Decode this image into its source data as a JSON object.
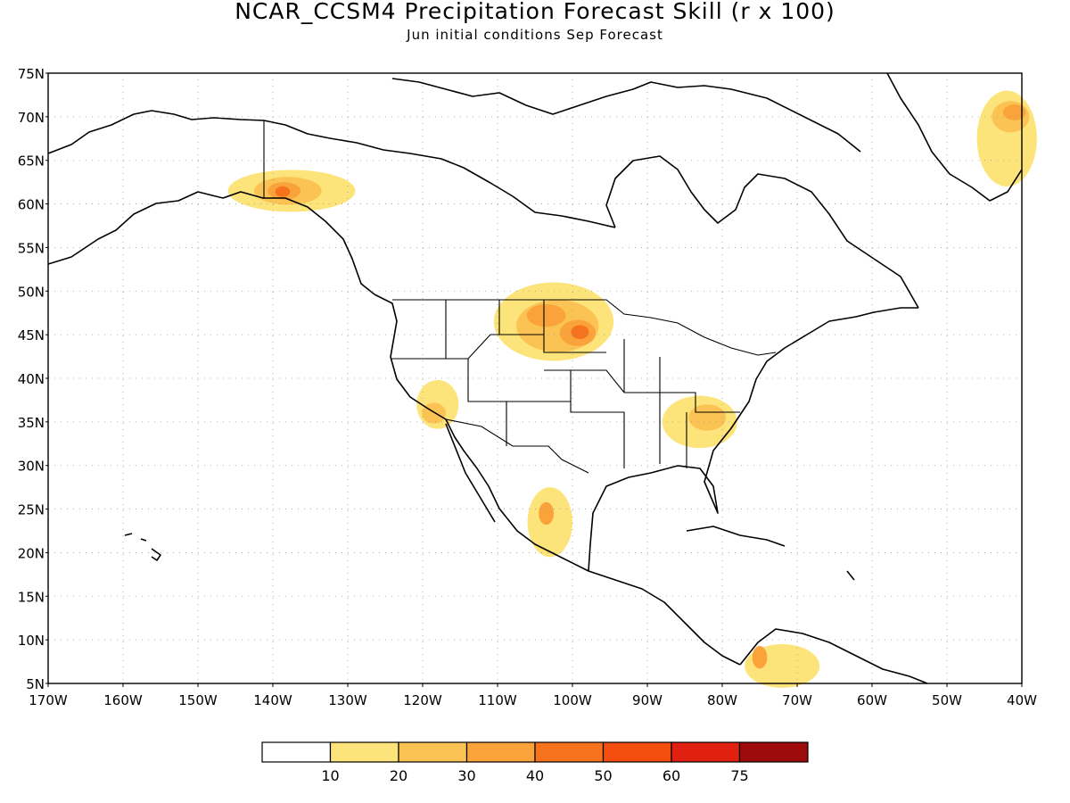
{
  "title": "NCAR_CCSM4 Precipitation Forecast Skill (r x 100)",
  "subtitle": "Jun initial conditions  Sep Forecast",
  "map": {
    "lon_min": -170,
    "lon_max": -40,
    "lat_min": 5,
    "lat_max": 75,
    "lat_ticks": [
      {
        "value": 75,
        "label": "75N"
      },
      {
        "value": 70,
        "label": "70N"
      },
      {
        "value": 65,
        "label": "65N"
      },
      {
        "value": 60,
        "label": "60N"
      },
      {
        "value": 55,
        "label": "55N"
      },
      {
        "value": 50,
        "label": "50N"
      },
      {
        "value": 45,
        "label": "45N"
      },
      {
        "value": 40,
        "label": "40N"
      },
      {
        "value": 35,
        "label": "35N"
      },
      {
        "value": 30,
        "label": "30N"
      },
      {
        "value": 25,
        "label": "25N"
      },
      {
        "value": 20,
        "label": "20N"
      },
      {
        "value": 15,
        "label": "15N"
      },
      {
        "value": 10,
        "label": "10N"
      },
      {
        "value": 5,
        "label": "5N"
      }
    ],
    "lon_ticks": [
      {
        "value": -170,
        "label": "170W"
      },
      {
        "value": -160,
        "label": "160W"
      },
      {
        "value": -150,
        "label": "150W"
      },
      {
        "value": -140,
        "label": "140W"
      },
      {
        "value": -130,
        "label": "130W"
      },
      {
        "value": -120,
        "label": "120W"
      },
      {
        "value": -110,
        "label": "110W"
      },
      {
        "value": -100,
        "label": "100W"
      },
      {
        "value": -90,
        "label": "90W"
      },
      {
        "value": -80,
        "label": "80W"
      },
      {
        "value": -70,
        "label": "70W"
      },
      {
        "value": -60,
        "label": "60W"
      },
      {
        "value": -50,
        "label": "50W"
      },
      {
        "value": -40,
        "label": "40W"
      }
    ],
    "grid": "dotted"
  },
  "colorbar": {
    "colors": [
      "#ffffff",
      "#fce47a",
      "#fbc354",
      "#f9a33a",
      "#f7721c",
      "#f34e0e",
      "#e02010",
      "#9d0b0b"
    ],
    "labels": [
      "10",
      "20",
      "30",
      "40",
      "50",
      "60",
      "75"
    ]
  },
  "skill_regions": [
    {
      "level": 1,
      "lon": -102.5,
      "lat": 46.5,
      "rlon": 8,
      "rlat": 4.5
    },
    {
      "level": 2,
      "lon": -102,
      "lat": 46,
      "rlon": 5.5,
      "rlat": 3
    },
    {
      "level": 3,
      "lon": -103.5,
      "lat": 47.2,
      "rlon": 2.6,
      "rlat": 1.3
    },
    {
      "level": 3,
      "lon": -99.3,
      "lat": 45.2,
      "rlon": 2.4,
      "rlat": 1.5
    },
    {
      "level": 4,
      "lon": -99,
      "lat": 45.3,
      "rlon": 1.2,
      "rlat": 0.8
    },
    {
      "level": 1,
      "lon": -137.5,
      "lat": 61.5,
      "rlon": 8.5,
      "rlat": 2.4
    },
    {
      "level": 2,
      "lon": -138,
      "lat": 61.5,
      "rlon": 4.5,
      "rlat": 1.6
    },
    {
      "level": 3,
      "lon": -138.5,
      "lat": 61.5,
      "rlon": 2.2,
      "rlat": 1
    },
    {
      "level": 4,
      "lon": -138.7,
      "lat": 61.4,
      "rlon": 1,
      "rlat": 0.6
    },
    {
      "level": 1,
      "lon": -42,
      "lat": 67.5,
      "rlon": 4,
      "rlat": 5.5
    },
    {
      "level": 2,
      "lon": -41.5,
      "lat": 70,
      "rlon": 2.5,
      "rlat": 1.8
    },
    {
      "level": 3,
      "lon": -41,
      "lat": 70.5,
      "rlon": 1.5,
      "rlat": 0.9
    },
    {
      "level": 1,
      "lon": -118,
      "lat": 37,
      "rlon": 2.8,
      "rlat": 2.8
    },
    {
      "level": 2,
      "lon": -118.5,
      "lat": 36,
      "rlon": 1.6,
      "rlat": 1.2
    },
    {
      "level": 1,
      "lon": -103,
      "lat": 23.5,
      "rlon": 3,
      "rlat": 4
    },
    {
      "level": 3,
      "lon": -103.5,
      "lat": 24.5,
      "rlon": 1,
      "rlat": 1.3
    },
    {
      "level": 1,
      "lon": -83,
      "lat": 35,
      "rlon": 5,
      "rlat": 3
    },
    {
      "level": 2,
      "lon": -82,
      "lat": 35.5,
      "rlon": 2.5,
      "rlat": 1.5
    },
    {
      "level": 1,
      "lon": -72,
      "lat": 7,
      "rlon": 5,
      "rlat": 2.5
    },
    {
      "level": 3,
      "lon": -75,
      "lat": 8,
      "rlon": 1,
      "rlat": 1.3
    }
  ]
}
